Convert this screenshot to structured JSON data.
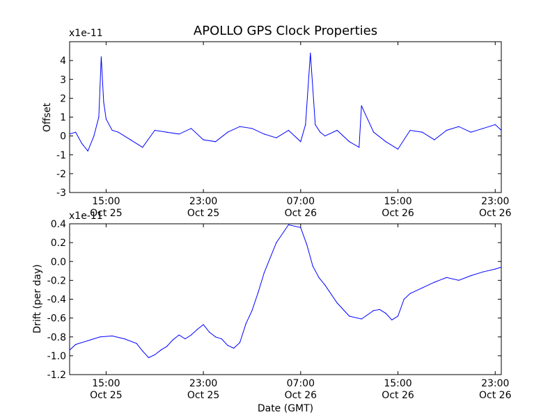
{
  "chart_data": [
    {
      "type": "line",
      "title": "APOLLO GPS Clock Properties",
      "ylabel": "Offset",
      "xlabel": "",
      "y_scale_label": "x1e-11",
      "ylim": [
        -3,
        5
      ],
      "y_ticks": [
        "-3",
        "-2",
        "-1",
        "0",
        "1",
        "2",
        "3",
        "4"
      ],
      "xlim": [
        "Oct 25 12:00",
        "Oct 26 23:30"
      ],
      "x_ticks": [
        {
          "time": "15:00",
          "date": "Oct 25"
        },
        {
          "time": "23:00",
          "date": "Oct 25"
        },
        {
          "time": "07:00",
          "date": "Oct 26"
        },
        {
          "time": "15:00",
          "date": "Oct 26"
        },
        {
          "time": "23:00",
          "date": "Oct 26"
        }
      ],
      "color": "#0000ff",
      "grid": false,
      "series": [
        {
          "x_hours": [
            0,
            0.5,
            1,
            1.5,
            2,
            2.4,
            2.6,
            2.8,
            3,
            3.5,
            4,
            5,
            6,
            7,
            8,
            9,
            10,
            11,
            12,
            13,
            14,
            15,
            16,
            17,
            18,
            19,
            19.4,
            19.8,
            20.2,
            20.6,
            21,
            22,
            23,
            23.8,
            24,
            25,
            26,
            27,
            28,
            29,
            30,
            31,
            32,
            33,
            34,
            35,
            35.5
          ],
          "values": [
            0.1,
            0.2,
            -0.4,
            -0.8,
            0.0,
            1.0,
            4.2,
            1.8,
            0.9,
            0.3,
            0.2,
            -0.2,
            -0.6,
            0.3,
            0.2,
            0.1,
            0.4,
            -0.2,
            -0.3,
            0.2,
            0.5,
            0.4,
            0.1,
            -0.1,
            0.3,
            -0.3,
            0.6,
            4.4,
            0.6,
            0.2,
            0.0,
            0.3,
            -0.3,
            -0.6,
            1.6,
            0.2,
            -0.3,
            -0.7,
            0.3,
            0.2,
            -0.2,
            0.3,
            0.5,
            0.2,
            0.4,
            0.6,
            0.3
          ]
        }
      ]
    },
    {
      "type": "line",
      "title": "",
      "ylabel": "Drift (per day)",
      "xlabel": "Date (GMT)",
      "y_scale_label": "x1e-11",
      "ylim": [
        -1.2,
        0.4
      ],
      "y_ticks": [
        "-1.2",
        "-1.0",
        "-0.8",
        "-0.6",
        "-0.4",
        "-0.2",
        "0.0",
        "0.2",
        "0.4"
      ],
      "xlim": [
        "Oct 25 12:00",
        "Oct 26 23:30"
      ],
      "x_ticks": [
        {
          "time": "15:00",
          "date": "Oct 25"
        },
        {
          "time": "23:00",
          "date": "Oct 25"
        },
        {
          "time": "07:00",
          "date": "Oct 26"
        },
        {
          "time": "15:00",
          "date": "Oct 26"
        },
        {
          "time": "23:00",
          "date": "Oct 26"
        }
      ],
      "color": "#0000ff",
      "grid": false,
      "series": [
        {
          "x_hours": [
            0,
            0.5,
            1.5,
            2.5,
            3.5,
            4.5,
            5.5,
            6.0,
            6.5,
            7.0,
            7.5,
            8.0,
            8.5,
            9.0,
            9.5,
            10.0,
            10.5,
            11.0,
            11.5,
            12.0,
            12.5,
            13.0,
            13.5,
            14.0,
            14.5,
            15.0,
            15.5,
            16.0,
            17.0,
            18.0,
            19.0,
            19.5,
            20.0,
            20.5,
            21.0,
            22.0,
            23.0,
            24.0,
            25.0,
            25.5,
            26.0,
            26.5,
            27.0,
            27.5,
            28.0,
            29.0,
            30.0,
            31.0,
            32.0,
            33.0,
            34.0,
            35.0,
            35.5
          ],
          "values": [
            -0.94,
            -0.88,
            -0.84,
            -0.8,
            -0.79,
            -0.82,
            -0.87,
            -0.95,
            -1.02,
            -0.99,
            -0.94,
            -0.9,
            -0.83,
            -0.78,
            -0.82,
            -0.78,
            -0.72,
            -0.67,
            -0.75,
            -0.8,
            -0.82,
            -0.89,
            -0.92,
            -0.86,
            -0.66,
            -0.52,
            -0.33,
            -0.12,
            0.2,
            0.39,
            0.36,
            0.18,
            -0.05,
            -0.17,
            -0.25,
            -0.44,
            -0.58,
            -0.61,
            -0.52,
            -0.51,
            -0.55,
            -0.62,
            -0.58,
            -0.4,
            -0.34,
            -0.28,
            -0.22,
            -0.17,
            -0.2,
            -0.15,
            -0.11,
            -0.08,
            -0.06
          ]
        }
      ]
    }
  ]
}
